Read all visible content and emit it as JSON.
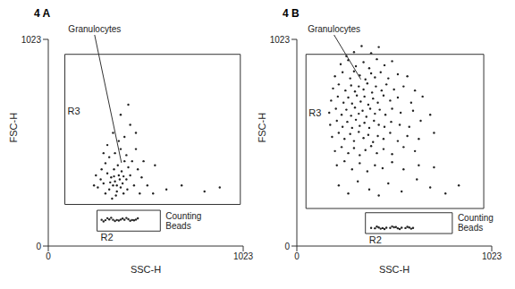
{
  "chart_data": [
    {
      "type": "scatter",
      "title": "4 A",
      "x_label": "SSC-H",
      "y_label": "FSC-H",
      "xlim": [
        0,
        1023
      ],
      "xticks": [
        0,
        1023
      ],
      "ylim": [
        0,
        1023
      ],
      "yticks": [
        0,
        1023
      ],
      "color": "#222222",
      "marker": "circle",
      "x": [
        300,
        320,
        340,
        360,
        380,
        350,
        330,
        370,
        390,
        410,
        310,
        345,
        365,
        385,
        400,
        420,
        290,
        275,
        260,
        300,
        320,
        350,
        380,
        410,
        430,
        450,
        440,
        470,
        490,
        355,
        335,
        395,
        415,
        280,
        250,
        370,
        340,
        400,
        430,
        310,
        290,
        460,
        500,
        520,
        240,
        360,
        375,
        325,
        395,
        345,
        380,
        420,
        460,
        550,
        620,
        700,
        820,
        900,
        560,
        480,
        280,
        300,
        320,
        340,
        360,
        380,
        400,
        420,
        440,
        460,
        310,
        350,
        390,
        430,
        470,
        290,
        330,
        370,
        410,
        450
      ],
      "values": [
        260,
        280,
        300,
        270,
        290,
        320,
        340,
        350,
        310,
        330,
        360,
        380,
        400,
        370,
        420,
        390,
        310,
        330,
        290,
        410,
        440,
        460,
        480,
        450,
        350,
        300,
        420,
        380,
        340,
        250,
        235,
        260,
        280,
        380,
        350,
        520,
        560,
        540,
        600,
        500,
        460,
        480,
        420,
        300,
        300,
        300,
        330,
        315,
        345,
        345,
        650,
        700,
        560,
        260,
        280,
        300,
        270,
        290,
        400,
        260,
        130,
        128,
        132,
        130,
        129,
        131,
        130,
        133,
        129,
        131,
        138,
        124,
        136,
        125,
        137,
        122,
        140,
        126,
        139,
        127
      ],
      "gates": [
        {
          "name": "R3",
          "x": [
            87,
            1008
          ],
          "y": [
            206,
            949
          ]
        },
        {
          "name": "R2",
          "x": [
            256,
            588
          ],
          "y": [
            74,
            177
          ],
          "population": "Counting Beads"
        }
      ],
      "annotations": [
        {
          "text": "Granulocytes",
          "x": 384,
          "y": 412
        }
      ]
    },
    {
      "type": "scatter",
      "title": "4 B",
      "x_label": "SSC-H",
      "y_label": "FSC-H",
      "xlim": [
        0,
        1023
      ],
      "xticks": [
        0,
        1023
      ],
      "ylim": [
        0,
        1023
      ],
      "yticks": [
        0,
        1023
      ],
      "color": "#222222",
      "marker": "circle",
      "x": [
        300,
        340,
        260,
        390,
        430,
        230,
        270,
        310,
        350,
        380,
        420,
        460,
        500,
        200,
        240,
        280,
        300,
        330,
        360,
        390,
        410,
        440,
        480,
        530,
        580,
        190,
        220,
        255,
        285,
        305,
        325,
        350,
        370,
        395,
        415,
        445,
        470,
        510,
        560,
        620,
        180,
        215,
        245,
        270,
        290,
        315,
        335,
        355,
        375,
        400,
        425,
        455,
        490,
        530,
        600,
        660,
        170,
        205,
        235,
        260,
        285,
        305,
        325,
        345,
        365,
        385,
        410,
        435,
        465,
        500,
        545,
        610,
        700,
        175,
        210,
        240,
        265,
        290,
        310,
        330,
        355,
        380,
        405,
        430,
        460,
        495,
        540,
        590,
        650,
        185,
        220,
        250,
        280,
        300,
        325,
        350,
        375,
        400,
        425,
        455,
        490,
        530,
        580,
        640,
        720,
        200,
        235,
        270,
        300,
        330,
        360,
        390,
        420,
        455,
        500,
        560,
        620,
        210,
        250,
        290,
        330,
        370,
        410,
        450,
        500,
        560,
        640,
        720,
        220,
        270,
        320,
        380,
        430,
        480,
        550,
        630,
        700,
        780,
        850,
        390,
        410,
        430,
        450,
        470,
        490,
        510,
        530,
        550,
        570,
        590,
        610,
        420,
        460,
        500,
        540,
        580,
        440,
        520,
        600
      ],
      "values": [
        960,
        990,
        940,
        955,
        985,
        900,
        920,
        890,
        910,
        880,
        925,
        895,
        915,
        840,
        860,
        830,
        865,
        845,
        825,
        855,
        835,
        860,
        830,
        850,
        840,
        780,
        800,
        770,
        795,
        765,
        790,
        775,
        805,
        760,
        790,
        770,
        800,
        775,
        790,
        770,
        720,
        740,
        710,
        735,
        705,
        745,
        715,
        740,
        700,
        730,
        710,
        745,
        720,
        735,
        710,
        740,
        660,
        680,
        650,
        675,
        645,
        685,
        655,
        670,
        640,
        680,
        655,
        675,
        650,
        680,
        660,
        670,
        650,
        600,
        620,
        590,
        615,
        585,
        625,
        595,
        610,
        585,
        620,
        600,
        590,
        615,
        600,
        590,
        620,
        540,
        560,
        530,
        555,
        520,
        565,
        535,
        550,
        515,
        545,
        530,
        560,
        520,
        545,
        530,
        560,
        470,
        490,
        460,
        485,
        450,
        475,
        495,
        460,
        480,
        455,
        490,
        470,
        400,
        420,
        380,
        410,
        370,
        400,
        385,
        415,
        380,
        400,
        390,
        300,
        260,
        320,
        280,
        250,
        310,
        270,
        330,
        290,
        260,
        300,
        90,
        88,
        92,
        89,
        91,
        90,
        93,
        88,
        91,
        89,
        92,
        90,
        96,
        84,
        97,
        84,
        95,
        86,
        94,
        86
      ],
      "gates": [
        {
          "name": "R3",
          "x": [
            48,
            981
          ],
          "y": [
            186,
            949
          ]
        },
        {
          "name": "R2",
          "x": [
            360,
            816
          ],
          "y": [
            62,
            165
          ],
          "population": "Counting Beads"
        }
      ],
      "annotations": [
        {
          "text": "Granulocytes",
          "x": 336,
          "y": 825
        }
      ]
    }
  ]
}
